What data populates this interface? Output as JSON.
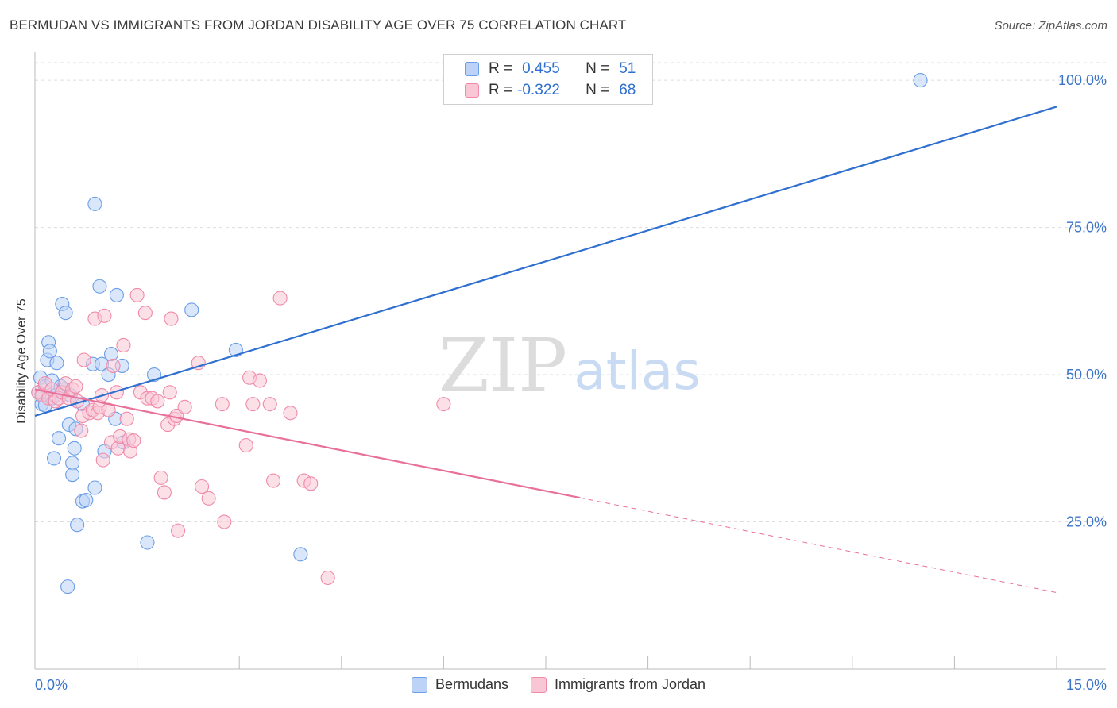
{
  "chart_data": {
    "type": "scatter",
    "title": "BERMUDAN VS IMMIGRANTS FROM JORDAN DISABILITY AGE OVER 75 CORRELATION CHART",
    "source": "Source: ZipAtlas.com",
    "ylabel": "Disability Age Over 75",
    "xlabel": "",
    "xlim": [
      0,
      15
    ],
    "ylim": [
      0,
      105
    ],
    "x_tick_labels": [
      "0.0%",
      "15.0%"
    ],
    "y_tick_labels": [
      "100.0%",
      "75.0%",
      "50.0%",
      "25.0%"
    ],
    "y_tick_values": [
      100,
      75,
      50,
      25
    ],
    "watermark": {
      "zip": "ZIP",
      "atlas": "atlas"
    },
    "legend": {
      "rows": [
        {
          "r_label": "R =",
          "r_value": "0.455",
          "n_label": "N =",
          "n_value": "51"
        },
        {
          "r_label": "R =",
          "r_value": "-0.322",
          "n_label": "N =",
          "n_value": "68"
        }
      ]
    },
    "series": [
      {
        "name": "Bermudans",
        "color": "#6a9ee8",
        "fill": "#bcd3f7",
        "line_color": "#2e6fcf",
        "trend": {
          "x0": 0,
          "y0": 43.0,
          "x1": 15,
          "y1": 95.5,
          "dashed_from": null
        },
        "points": [
          [
            0.05,
            47.0
          ],
          [
            0.08,
            49.5
          ],
          [
            0.1,
            45.0
          ],
          [
            0.12,
            46.5
          ],
          [
            0.15,
            48.0
          ],
          [
            0.15,
            44.8
          ],
          [
            0.18,
            52.5
          ],
          [
            0.2,
            55.5
          ],
          [
            0.22,
            54.0
          ],
          [
            0.25,
            49.0
          ],
          [
            0.25,
            46.0
          ],
          [
            0.28,
            35.8
          ],
          [
            0.3,
            46.5
          ],
          [
            0.32,
            52.0
          ],
          [
            0.35,
            39.2
          ],
          [
            0.38,
            48.0
          ],
          [
            0.4,
            62.0
          ],
          [
            0.42,
            47.5
          ],
          [
            0.45,
            60.5
          ],
          [
            0.48,
            14.0
          ],
          [
            0.5,
            41.5
          ],
          [
            0.52,
            46.5
          ],
          [
            0.55,
            35.0
          ],
          [
            0.55,
            33.0
          ],
          [
            0.58,
            37.5
          ],
          [
            0.6,
            40.8
          ],
          [
            0.62,
            24.5
          ],
          [
            0.7,
            45.0
          ],
          [
            0.7,
            28.5
          ],
          [
            0.75,
            28.7
          ],
          [
            0.85,
            51.8
          ],
          [
            0.88,
            30.8
          ],
          [
            0.88,
            79.0
          ],
          [
            0.95,
            65.0
          ],
          [
            0.98,
            51.8
          ],
          [
            1.02,
            37.0
          ],
          [
            1.08,
            50.0
          ],
          [
            1.12,
            53.5
          ],
          [
            1.18,
            42.5
          ],
          [
            1.2,
            63.5
          ],
          [
            1.28,
            51.5
          ],
          [
            1.3,
            38.5
          ],
          [
            1.65,
            21.5
          ],
          [
            1.75,
            50.0
          ],
          [
            2.3,
            61.0
          ],
          [
            2.95,
            54.2
          ],
          [
            3.9,
            19.5
          ],
          [
            13.0,
            100.0
          ]
        ]
      },
      {
        "name": "Immigrants from Jordan",
        "color": "#f08aa8",
        "fill": "#f9c6d5",
        "line_color": "#e8709a",
        "trend": {
          "x0": 0,
          "y0": 47.5,
          "x1": 15,
          "y1": 13.0,
          "dashed_from": 8.0
        },
        "points": [
          [
            0.05,
            47.0
          ],
          [
            0.1,
            46.5
          ],
          [
            0.15,
            48.5
          ],
          [
            0.2,
            46.0
          ],
          [
            0.25,
            47.5
          ],
          [
            0.3,
            45.5
          ],
          [
            0.35,
            46.0
          ],
          [
            0.4,
            47.0
          ],
          [
            0.45,
            48.5
          ],
          [
            0.5,
            46.0
          ],
          [
            0.55,
            47.5
          ],
          [
            0.6,
            48.0
          ],
          [
            0.62,
            45.5
          ],
          [
            0.68,
            40.5
          ],
          [
            0.7,
            43.0
          ],
          [
            0.72,
            52.5
          ],
          [
            0.8,
            43.5
          ],
          [
            0.85,
            44.0
          ],
          [
            0.88,
            59.5
          ],
          [
            0.92,
            43.5
          ],
          [
            0.95,
            44.5
          ],
          [
            0.98,
            46.5
          ],
          [
            1.0,
            35.5
          ],
          [
            1.02,
            60.0
          ],
          [
            1.08,
            44.0
          ],
          [
            1.12,
            38.5
          ],
          [
            1.15,
            51.5
          ],
          [
            1.2,
            47.0
          ],
          [
            1.22,
            37.5
          ],
          [
            1.25,
            39.5
          ],
          [
            1.3,
            55.0
          ],
          [
            1.35,
            42.5
          ],
          [
            1.38,
            39.0
          ],
          [
            1.4,
            37.0
          ],
          [
            1.45,
            38.8
          ],
          [
            1.5,
            63.5
          ],
          [
            1.55,
            47.0
          ],
          [
            1.62,
            60.5
          ],
          [
            1.65,
            46.0
          ],
          [
            1.72,
            46.0
          ],
          [
            1.8,
            45.5
          ],
          [
            1.85,
            32.5
          ],
          [
            1.9,
            30.0
          ],
          [
            1.95,
            41.5
          ],
          [
            1.98,
            47.0
          ],
          [
            2.0,
            59.5
          ],
          [
            2.05,
            42.5
          ],
          [
            2.08,
            43.0
          ],
          [
            2.1,
            23.5
          ],
          [
            2.2,
            44.5
          ],
          [
            2.4,
            52.0
          ],
          [
            2.45,
            31.0
          ],
          [
            2.55,
            29.0
          ],
          [
            2.75,
            45.0
          ],
          [
            2.78,
            25.0
          ],
          [
            3.1,
            38.0
          ],
          [
            3.15,
            49.5
          ],
          [
            3.2,
            45.0
          ],
          [
            3.3,
            49.0
          ],
          [
            3.45,
            45.0
          ],
          [
            3.5,
            32.0
          ],
          [
            3.6,
            63.0
          ],
          [
            3.75,
            43.5
          ],
          [
            3.95,
            32.0
          ],
          [
            4.05,
            31.5
          ],
          [
            4.3,
            15.5
          ],
          [
            6.0,
            45.0
          ]
        ]
      }
    ]
  },
  "bottom_legend": {
    "items": [
      "Bermudans",
      "Immigrants from Jordan"
    ]
  }
}
